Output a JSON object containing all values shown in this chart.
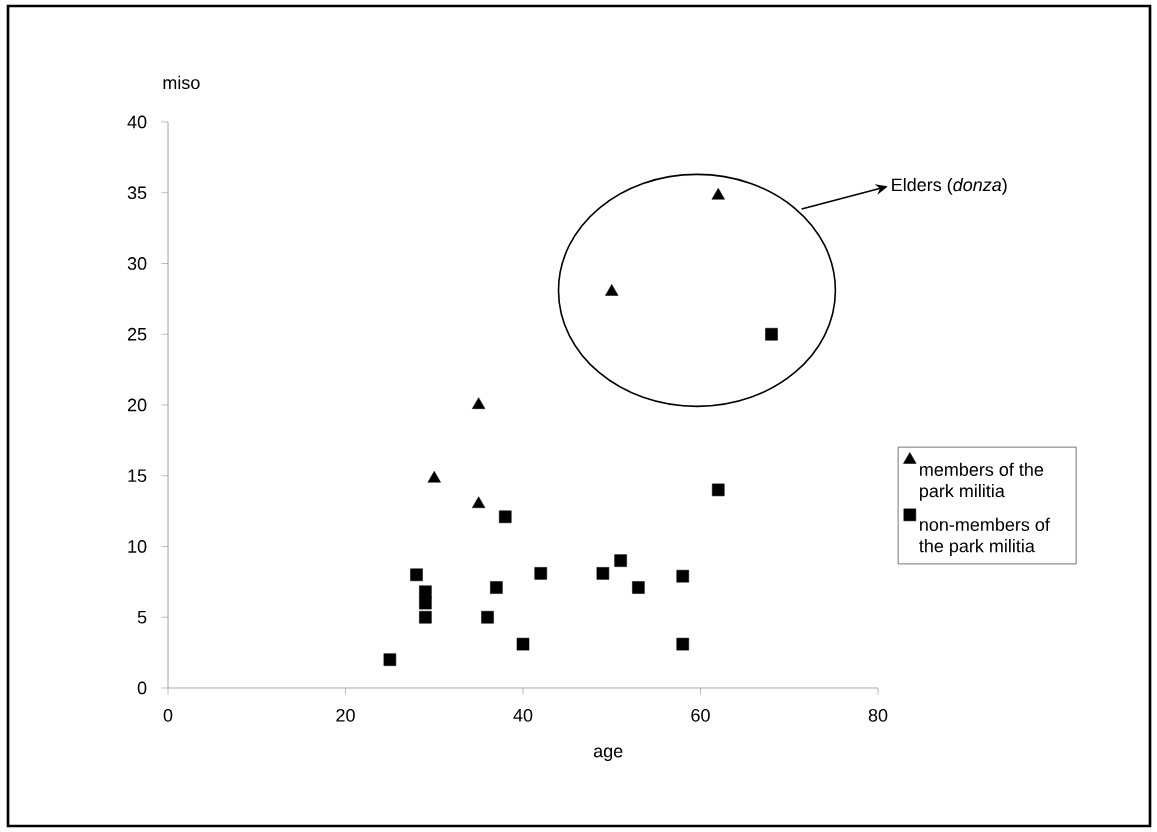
{
  "chart_data": {
    "type": "scatter",
    "xlabel": "age",
    "ylabel": "miso",
    "xlim": [
      0,
      80
    ],
    "ylim": [
      0,
      40
    ],
    "xticks": [
      0,
      20,
      40,
      60,
      80
    ],
    "yticks": [
      0,
      5,
      10,
      15,
      20,
      25,
      30,
      35,
      40
    ],
    "grid": false,
    "legend": "right",
    "annotations": [
      "Elders (*donza*)"
    ],
    "series": [
      {
        "name": "members of the park militia",
        "color": "#000000",
        "marker": "triangle",
        "x": [
          30,
          35,
          35,
          50,
          62
        ],
        "values": [
          14.8,
          20,
          13,
          28,
          34.8
        ]
      },
      {
        "name": "non-members of the park militia",
        "color": "#000000",
        "marker": "square",
        "x": [
          25,
          28,
          29,
          29,
          29,
          36,
          37,
          38,
          40,
          42,
          49,
          51,
          53,
          58,
          58,
          62,
          68
        ],
        "values": [
          2,
          8,
          6.8,
          6,
          5,
          5,
          7.1,
          12.1,
          3.1,
          8.1,
          8.1,
          9,
          7.1,
          7.9,
          3.1,
          14,
          25
        ]
      }
    ]
  }
}
